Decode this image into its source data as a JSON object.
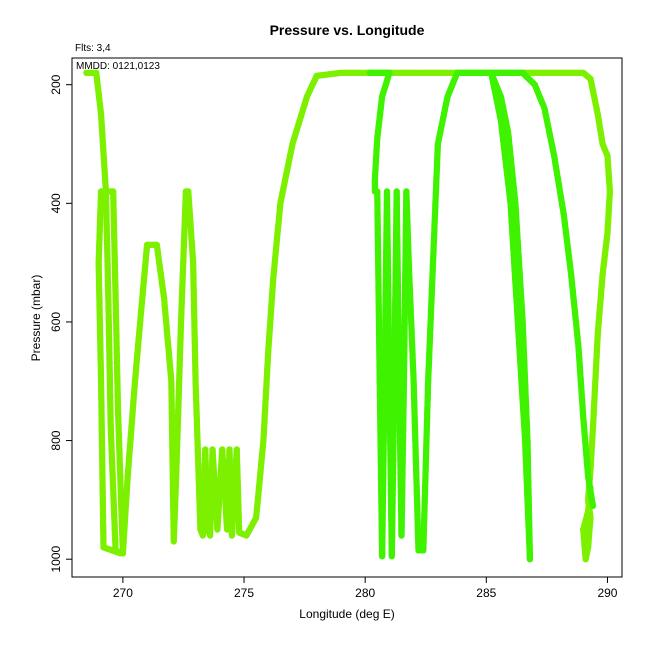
{
  "chart_data": {
    "type": "scatter",
    "title": "Pressure vs. Longitude",
    "subtitle": "Flts: 3,4",
    "annotation": "MMDD: 0121,0123",
    "xlabel": "Longitude (deg E)",
    "ylabel": "Pressure (mbar)",
    "xlim": [
      267.9,
      290.6
    ],
    "ylim": [
      1030,
      155
    ],
    "y_reversed": true,
    "x_ticks": [
      270,
      275,
      280,
      285,
      290
    ],
    "y_ticks": [
      200,
      400,
      600,
      800,
      1000
    ],
    "grid": false,
    "marker": "filled-circle",
    "colors": {
      "flight_a": "#7df000",
      "flight_b": "#3ef200"
    },
    "series": [
      {
        "color": "#7df000",
        "points": [
          [
            268.5,
            180
          ],
          [
            268.9,
            180
          ],
          [
            269.1,
            250
          ],
          [
            269.3,
            380
          ],
          [
            269.4,
            560
          ],
          [
            269.5,
            780
          ],
          [
            269.7,
            985
          ],
          [
            269.9,
            990
          ],
          [
            269.2,
            980
          ],
          [
            269.1,
            700
          ],
          [
            269.0,
            500
          ],
          [
            269.1,
            380
          ],
          [
            269.5,
            380
          ],
          [
            269.6,
            380
          ],
          [
            269.7,
            560
          ],
          [
            269.8,
            750
          ],
          [
            270.0,
            990
          ],
          [
            270.2,
            860
          ],
          [
            270.5,
            700
          ],
          [
            270.8,
            560
          ],
          [
            271.0,
            470
          ],
          [
            271.4,
            470
          ],
          [
            271.7,
            560
          ],
          [
            272.0,
            700
          ],
          [
            272.1,
            970
          ],
          [
            272.2,
            860
          ],
          [
            272.4,
            600
          ],
          [
            272.6,
            380
          ],
          [
            272.7,
            380
          ],
          [
            272.9,
            500
          ],
          [
            273.0,
            700
          ],
          [
            273.2,
            950
          ],
          [
            273.3,
            960
          ],
          [
            273.4,
            815
          ],
          [
            273.5,
            950
          ],
          [
            273.6,
            960
          ],
          [
            273.7,
            815
          ],
          [
            273.9,
            950
          ],
          [
            274.1,
            815
          ],
          [
            274.3,
            950
          ],
          [
            274.4,
            815
          ],
          [
            274.5,
            960
          ],
          [
            274.7,
            815
          ],
          [
            274.8,
            955
          ],
          [
            275.1,
            960
          ],
          [
            275.5,
            930
          ],
          [
            275.8,
            800
          ],
          [
            276.0,
            650
          ],
          [
            276.2,
            530
          ],
          [
            276.5,
            400
          ],
          [
            277.0,
            300
          ],
          [
            277.6,
            220
          ],
          [
            278.0,
            185
          ],
          [
            279.0,
            180
          ],
          [
            280.0,
            180
          ],
          [
            282.0,
            180
          ],
          [
            284.0,
            180
          ],
          [
            286.0,
            180
          ],
          [
            287.0,
            180
          ],
          [
            288.0,
            180
          ],
          [
            289.0,
            180
          ],
          [
            289.3,
            190
          ],
          [
            289.6,
            250
          ],
          [
            289.8,
            300
          ],
          [
            290.0,
            320
          ],
          [
            290.1,
            380
          ],
          [
            290.0,
            450
          ],
          [
            289.8,
            520
          ],
          [
            289.6,
            620
          ],
          [
            289.5,
            700
          ],
          [
            289.4,
            780
          ],
          [
            289.3,
            850
          ],
          [
            289.2,
            900
          ],
          [
            289.3,
            930
          ],
          [
            289.2,
            980
          ],
          [
            289.1,
            1000
          ],
          [
            289.0,
            950
          ],
          [
            289.2,
            920
          ],
          [
            289.3,
            880
          ]
        ]
      },
      {
        "color": "#3ef200",
        "points": [
          [
            280.2,
            180
          ],
          [
            281.0,
            180
          ],
          [
            280.7,
            220
          ],
          [
            280.5,
            290
          ],
          [
            280.4,
            360
          ],
          [
            280.4,
            380
          ],
          [
            280.5,
            380
          ],
          [
            280.6,
            700
          ],
          [
            280.7,
            995
          ],
          [
            280.8,
            700
          ],
          [
            280.9,
            380
          ],
          [
            281.0,
            700
          ],
          [
            281.1,
            995
          ],
          [
            281.2,
            700
          ],
          [
            281.3,
            380
          ],
          [
            281.4,
            700
          ],
          [
            281.5,
            960
          ],
          [
            281.6,
            700
          ],
          [
            281.7,
            380
          ],
          [
            281.8,
            500
          ],
          [
            282.0,
            700
          ],
          [
            282.2,
            985
          ],
          [
            282.4,
            985
          ],
          [
            282.6,
            700
          ],
          [
            282.8,
            500
          ],
          [
            283.0,
            300
          ],
          [
            283.4,
            220
          ],
          [
            283.8,
            180
          ],
          [
            284.2,
            180
          ],
          [
            285.2,
            180
          ],
          [
            285.6,
            220
          ],
          [
            285.9,
            280
          ],
          [
            286.2,
            400
          ],
          [
            286.5,
            600
          ],
          [
            286.7,
            800
          ],
          [
            286.8,
            1000
          ],
          [
            286.6,
            800
          ],
          [
            286.3,
            600
          ],
          [
            286.0,
            400
          ],
          [
            285.6,
            260
          ],
          [
            285.2,
            180
          ],
          [
            286.5,
            180
          ],
          [
            287.0,
            200
          ],
          [
            287.4,
            240
          ],
          [
            287.8,
            320
          ],
          [
            288.2,
            420
          ],
          [
            288.5,
            520
          ],
          [
            288.8,
            640
          ],
          [
            289.0,
            760
          ],
          [
            289.2,
            860
          ],
          [
            289.4,
            910
          ]
        ]
      }
    ]
  }
}
